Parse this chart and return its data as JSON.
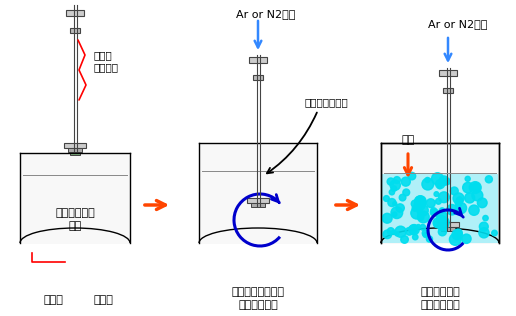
{
  "bg_color": "#ffffff",
  "label_mixer1": "脱ガス",
  "label_mixer2": "ミキサー",
  "label_melt1": "アルミニウム",
  "label_melt2": "溶湯",
  "label_flux": "フラックス投入",
  "label_gas2": "Ar or N2ガス",
  "label_gas3": "Ar or N2ガス",
  "label_descent": "下降",
  "label_before": "処理前",
  "label_tank": "処理槽",
  "label_dross1": "ドロス分離処理中",
  "label_dross2": "（高速回転）",
  "label_degas1": "脱ガス処理中",
  "label_degas2": "（低速回転）"
}
